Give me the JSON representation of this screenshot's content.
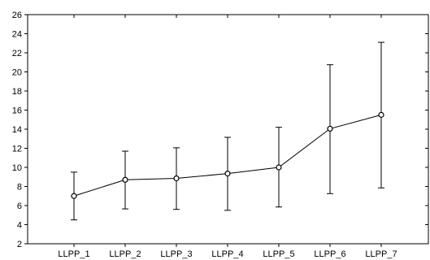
{
  "chart_data": {
    "type": "line",
    "title": "",
    "xlabel": "",
    "ylabel": "",
    "categories": [
      "LLPP_1",
      "LLPP_2",
      "LLPP_3",
      "LLPP_4",
      "LLPP_5",
      "LLPP_6",
      "LLPP_7"
    ],
    "series": [
      {
        "values": [
          7.0,
          8.7,
          8.85,
          9.35,
          10.0,
          14.05,
          15.5
        ],
        "error_low": [
          4.5,
          5.65,
          5.6,
          5.5,
          5.85,
          7.25,
          7.85
        ],
        "error_high": [
          9.5,
          11.7,
          12.05,
          13.15,
          14.2,
          20.75,
          23.1
        ]
      }
    ],
    "ylim": [
      2,
      26
    ],
    "yticks": [
      2,
      4,
      6,
      8,
      10,
      12,
      14,
      16,
      18,
      20,
      22,
      24,
      26
    ],
    "grid": false,
    "marker": "open-circle",
    "line_color": "#000000"
  }
}
